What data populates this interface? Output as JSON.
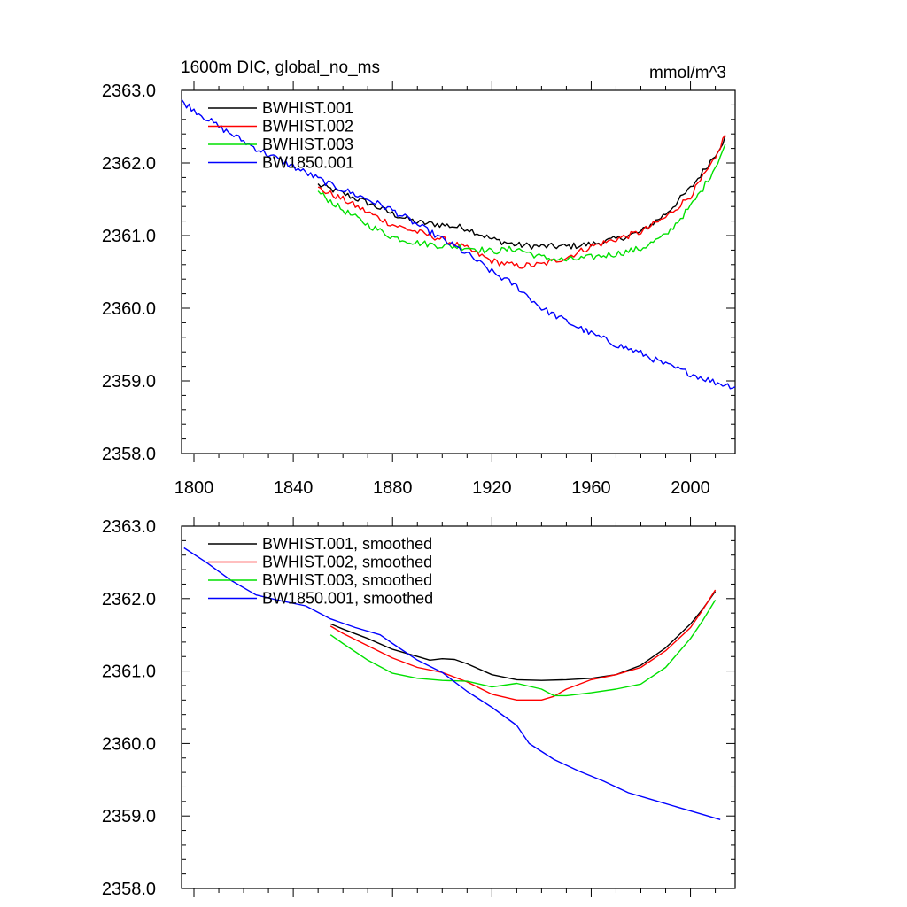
{
  "title_left": "1600m DIC, global_no_ms",
  "title_right": "mmol/m^3",
  "colors": {
    "BWHIST.001": "#000000",
    "BWHIST.002": "#ff0000",
    "BWHIST.003": "#00e000",
    "BW1850.001": "#0000ff"
  },
  "chart_data": [
    {
      "type": "line",
      "title": "1600m DIC, global_no_ms",
      "ylabel_right": "mmol/m^3",
      "xlim": [
        1795,
        2018
      ],
      "ylim": [
        2358.0,
        2363.0
      ],
      "yticks": [
        "2358.0",
        "2359.0",
        "2360.0",
        "2361.0",
        "2362.0",
        "2363.0"
      ],
      "xticks": [
        "1800",
        "1840",
        "1880",
        "1920",
        "1960",
        "2000"
      ],
      "show_x_tick_labels": true,
      "noisy": true,
      "legend_position": "top-left",
      "series": [
        {
          "name": "BWHIST.001",
          "color": "#000000",
          "x": [
            1850,
            1860,
            1870,
            1880,
            1890,
            1900,
            1910,
            1920,
            1930,
            1940,
            1950,
            1960,
            1970,
            1980,
            1990,
            2000,
            2005,
            2010,
            2014
          ],
          "y": [
            2361.7,
            2361.58,
            2361.45,
            2361.3,
            2361.18,
            2361.15,
            2361.1,
            2360.95,
            2360.87,
            2360.85,
            2360.85,
            2360.88,
            2360.95,
            2361.05,
            2361.3,
            2361.65,
            2361.88,
            2362.12,
            2362.35
          ]
        },
        {
          "name": "BWHIST.002",
          "color": "#ff0000",
          "x": [
            1850,
            1860,
            1870,
            1880,
            1890,
            1900,
            1910,
            1920,
            1930,
            1940,
            1950,
            1960,
            1970,
            1980,
            1990,
            2000,
            2005,
            2010,
            2014
          ],
          "y": [
            2361.65,
            2361.5,
            2361.32,
            2361.15,
            2361.05,
            2360.95,
            2360.82,
            2360.65,
            2360.58,
            2360.6,
            2360.7,
            2360.85,
            2360.95,
            2361.05,
            2361.25,
            2361.55,
            2361.8,
            2362.05,
            2362.4
          ]
        },
        {
          "name": "BWHIST.003",
          "color": "#00e000",
          "x": [
            1850,
            1860,
            1870,
            1880,
            1890,
            1900,
            1910,
            1920,
            1930,
            1940,
            1950,
            1960,
            1970,
            1980,
            1990,
            2000,
            2005,
            2010,
            2014
          ],
          "y": [
            2361.6,
            2361.35,
            2361.15,
            2360.98,
            2360.9,
            2360.86,
            2360.84,
            2360.78,
            2360.82,
            2360.7,
            2360.66,
            2360.7,
            2360.75,
            2360.82,
            2361.0,
            2361.4,
            2361.65,
            2361.95,
            2362.25
          ]
        },
        {
          "name": "BW1850.001",
          "color": "#0000ff",
          "x": [
            1795,
            1810,
            1825,
            1840,
            1855,
            1870,
            1880,
            1890,
            1900,
            1910,
            1920,
            1930,
            1940,
            1950,
            1960,
            1970,
            1980,
            1990,
            2000,
            2010,
            2018
          ],
          "y": [
            2362.85,
            2362.5,
            2362.2,
            2361.95,
            2361.7,
            2361.5,
            2361.35,
            2361.15,
            2360.95,
            2360.75,
            2360.5,
            2360.3,
            2360.0,
            2359.82,
            2359.65,
            2359.5,
            2359.38,
            2359.22,
            2359.1,
            2358.98,
            2358.92
          ]
        }
      ]
    },
    {
      "type": "line",
      "xlim": [
        1795,
        2018
      ],
      "ylim": [
        2358.0,
        2363.0
      ],
      "yticks": [
        "2358.0",
        "2359.0",
        "2360.0",
        "2361.0",
        "2362.0",
        "2363.0"
      ],
      "xticks": [
        "1800",
        "1840",
        "1880",
        "1920",
        "1960",
        "2000"
      ],
      "show_x_tick_labels": false,
      "noisy": false,
      "legend_position": "top-left",
      "series": [
        {
          "name": "BWHIST.001, smoothed",
          "color": "#000000",
          "x": [
            1855,
            1860,
            1870,
            1880,
            1890,
            1895,
            1900,
            1905,
            1910,
            1920,
            1930,
            1940,
            1950,
            1960,
            1970,
            1980,
            1990,
            2000,
            2005,
            2010
          ],
          "y": [
            2361.65,
            2361.58,
            2361.45,
            2361.3,
            2361.2,
            2361.15,
            2361.17,
            2361.16,
            2361.1,
            2360.95,
            2360.88,
            2360.87,
            2360.88,
            2360.9,
            2360.95,
            2361.08,
            2361.32,
            2361.65,
            2361.86,
            2362.1
          ]
        },
        {
          "name": "BWHIST.002, smoothed",
          "color": "#ff0000",
          "x": [
            1855,
            1860,
            1870,
            1880,
            1890,
            1900,
            1910,
            1920,
            1930,
            1940,
            1945,
            1950,
            1960,
            1970,
            1980,
            1990,
            2000,
            2005,
            2010
          ],
          "y": [
            2361.62,
            2361.52,
            2361.35,
            2361.18,
            2361.05,
            2360.98,
            2360.85,
            2360.68,
            2360.6,
            2360.6,
            2360.65,
            2360.75,
            2360.88,
            2360.95,
            2361.05,
            2361.28,
            2361.6,
            2361.85,
            2362.12
          ]
        },
        {
          "name": "BWHIST.003, smoothed",
          "color": "#00e000",
          "x": [
            1855,
            1860,
            1870,
            1880,
            1890,
            1900,
            1910,
            1920,
            1930,
            1940,
            1945,
            1950,
            1960,
            1970,
            1980,
            1990,
            2000,
            2005,
            2010
          ],
          "y": [
            2361.5,
            2361.38,
            2361.15,
            2360.97,
            2360.9,
            2360.87,
            2360.86,
            2360.78,
            2360.83,
            2360.75,
            2360.66,
            2360.66,
            2360.7,
            2360.75,
            2360.82,
            2361.05,
            2361.45,
            2361.7,
            2361.98
          ]
        },
        {
          "name": "BW1850.001, smoothed",
          "color": "#0000ff",
          "x": [
            1796,
            1805,
            1815,
            1825,
            1835,
            1845,
            1855,
            1865,
            1875,
            1880,
            1890,
            1900,
            1910,
            1920,
            1930,
            1935,
            1945,
            1955,
            1965,
            1975,
            1985,
            1995,
            2005,
            2012
          ],
          "y": [
            2362.7,
            2362.5,
            2362.25,
            2362.05,
            2361.97,
            2361.9,
            2361.72,
            2361.6,
            2361.5,
            2361.38,
            2361.15,
            2360.98,
            2360.72,
            2360.5,
            2360.25,
            2360.0,
            2359.78,
            2359.62,
            2359.48,
            2359.32,
            2359.22,
            2359.12,
            2359.02,
            2358.95
          ]
        }
      ]
    }
  ]
}
